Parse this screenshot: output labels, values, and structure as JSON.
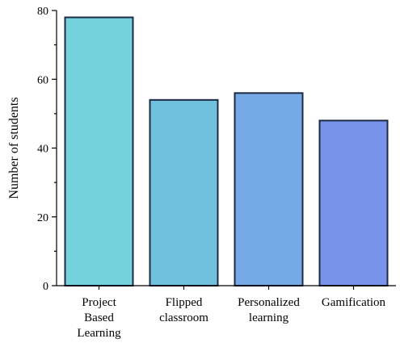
{
  "chart_data": {
    "type": "bar",
    "title": "",
    "xlabel": "",
    "ylabel": "Number of students",
    "ylim": [
      0,
      80
    ],
    "yticks": [
      0,
      20,
      40,
      60,
      80
    ],
    "grid": false,
    "categories": [
      [
        "Project",
        "Based",
        "Learning"
      ],
      [
        "Flipped",
        "classroom"
      ],
      [
        "Personalized",
        "learning"
      ],
      [
        "Gamification"
      ]
    ],
    "values": [
      78,
      54,
      56,
      48
    ],
    "colors": [
      "#74d2dc",
      "#6fc1dc",
      "#75a9e5",
      "#7893ea"
    ]
  }
}
